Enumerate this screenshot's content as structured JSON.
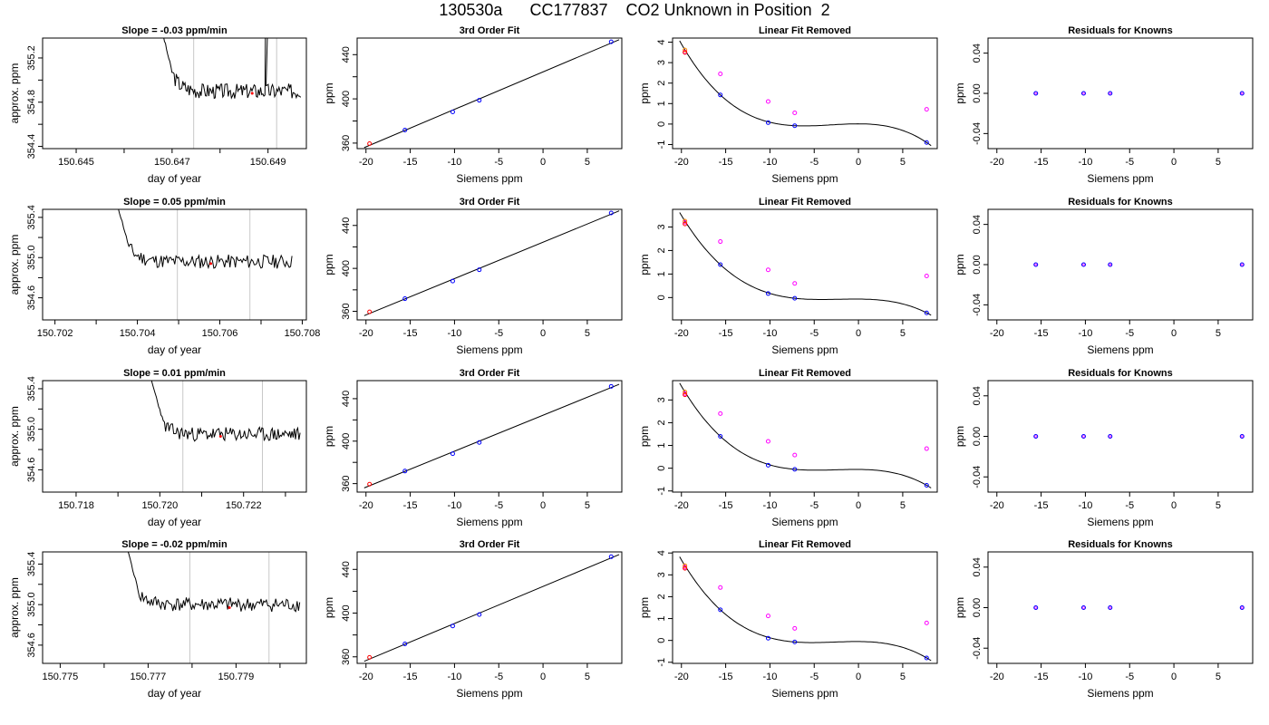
{
  "title": "130530a      CC177837    CO2 Unknown in Position  2",
  "colors": {
    "trace": "#000000",
    "vline": "#c8c8c8",
    "known": "#0000ff",
    "unknown": "#ff00ff",
    "first": "#ff0000",
    "highlight": "#ff8c00"
  },
  "chart_data": [
    {
      "row": 1,
      "type": "line",
      "title": "Slope =  -0.03  ppm/min",
      "xlabel": "day of year",
      "ylabel": "approx. ppm",
      "xlim": [
        150.6443,
        150.6498
      ],
      "ylim": [
        354.38,
        355.38
      ],
      "xticks": [
        150.645,
        150.647,
        150.649
      ],
      "xtick_labels": [
        "150.645",
        "150.647",
        "150.649"
      ],
      "xminor": [
        150.646,
        150.648
      ],
      "yticks": [
        354.4,
        354.8,
        355.2
      ],
      "ytick_labels": [
        "354.4",
        "354.8",
        "355.2"
      ],
      "yminor": [
        354.6,
        355.0
      ],
      "trace_x_start": 150.64675,
      "trace_x_end": 150.64968,
      "trace_start_y": 355.52,
      "trace_drop_y": 355.07,
      "trace_drop_x": 150.647,
      "trace_base": 354.9,
      "trace_amp": 0.07,
      "trace_seed": 3,
      "spike": {
        "x": 150.64895,
        "x2": 150.649,
        "y": 355.6
      },
      "vlines": [
        150.64745,
        150.64918
      ],
      "marker": {
        "x": 150.64867,
        "y": 354.88
      }
    },
    {
      "row": 1,
      "type": "scatter-line",
      "title": "3rd Order Fit",
      "xlabel": "Siemens ppm",
      "ylabel": "ppm",
      "xlim": [
        -21,
        8.9
      ],
      "ylim": [
        355,
        455
      ],
      "xticks": [
        -20,
        -15,
        -10,
        -5,
        0,
        5
      ],
      "xtick_labels": [
        "-20",
        "-15",
        "-10",
        "-5",
        "0",
        "5"
      ],
      "yticks": [
        360,
        400,
        440
      ],
      "ytick_labels": [
        "360",
        "400",
        "440"
      ],
      "yminor": [
        380,
        420
      ],
      "points_x": [
        -19.6,
        -15.6,
        -10.2,
        -7.2,
        7.7
      ],
      "points_y": [
        359.5,
        371.8,
        388.2,
        398.7,
        451.6
      ],
      "point_colors": [
        "first",
        "known",
        "known",
        "known",
        "known"
      ]
    },
    {
      "row": 1,
      "type": "scatter-curve",
      "title": "Linear Fit Removed",
      "xlabel": "Siemens ppm",
      "ylabel": "ppm",
      "xlim": [
        -21,
        8.9
      ],
      "ylim": [
        -1.2,
        4.2
      ],
      "xticks": [
        -20,
        -15,
        -10,
        -5,
        0,
        5
      ],
      "xtick_labels": [
        "-20",
        "-15",
        "-10",
        "-5",
        "0",
        "5"
      ],
      "yticks": [
        -1,
        0,
        1,
        2,
        3,
        4
      ],
      "ytick_labels": [
        "-1",
        "0",
        "1",
        "2",
        "3",
        "4"
      ],
      "known_x": [
        -15.6,
        -10.2,
        -7.2,
        7.7
      ],
      "known_y": [
        1.42,
        0.07,
        -0.08,
        -0.9
      ],
      "unknown_x": [
        -19.6,
        -15.6,
        -10.2,
        -7.2,
        7.7
      ],
      "unknown_y": [
        3.52,
        2.45,
        1.1,
        0.55,
        0.72
      ],
      "first_point": {
        "x": -19.6,
        "y": 3.62
      },
      "curve_range": [
        -20.2,
        8.2
      ]
    },
    {
      "row": 1,
      "type": "scatter",
      "title": "Residuals for Knowns",
      "xlabel": "Siemens ppm",
      "ylabel": "ppm",
      "xlim": [
        -21,
        8.9
      ],
      "ylim": [
        -0.055,
        0.055
      ],
      "xticks": [
        -20,
        -15,
        -10,
        -5,
        0,
        5
      ],
      "xtick_labels": [
        "-20",
        "-15",
        "-10",
        "-5",
        "0",
        "5"
      ],
      "yticks": [
        -0.04,
        0.0,
        0.04
      ],
      "ytick_labels": [
        "-0.04",
        "0.00",
        "0.04"
      ],
      "points_x": [
        -15.6,
        -10.2,
        -7.2,
        7.7
      ],
      "points_y": [
        0,
        0,
        0,
        0
      ]
    },
    {
      "row": 2,
      "type": "line",
      "title": "Slope =  0.05  ppm/min",
      "xlabel": "day of year",
      "ylabel": "approx. ppm",
      "xlim": [
        150.7017,
        150.7081
      ],
      "ylim": [
        354.38,
        355.48
      ],
      "xticks": [
        150.702,
        150.704,
        150.706,
        150.708
      ],
      "xtick_labels": [
        "150.702",
        "150.704",
        "150.706",
        "150.708"
      ],
      "xminor": [
        150.703,
        150.705,
        150.707
      ],
      "yticks": [
        354.6,
        355.0,
        355.4
      ],
      "ytick_labels": [
        "354.6",
        "355.0",
        "355.4"
      ],
      "yminor": [
        354.8,
        355.2
      ],
      "trace_x_start": 150.7035,
      "trace_x_end": 150.70775,
      "trace_start_y": 355.55,
      "trace_drop_y": 355.1,
      "trace_drop_x": 150.7038,
      "trace_base": 354.96,
      "trace_amp": 0.07,
      "trace_seed": 11,
      "vlines": [
        150.70497,
        150.70673
      ],
      "marker": {
        "x": 150.70578,
        "y": 354.94
      }
    },
    {
      "row": 2,
      "type": "scatter-line",
      "title": "3rd Order Fit",
      "xlabel": "Siemens ppm",
      "ylabel": "ppm",
      "xlim": [
        -21,
        8.9
      ],
      "ylim": [
        352,
        455
      ],
      "xticks": [
        -20,
        -15,
        -10,
        -5,
        0,
        5
      ],
      "xtick_labels": [
        "-20",
        "-15",
        "-10",
        "-5",
        "0",
        "5"
      ],
      "yticks": [
        360,
        400,
        440
      ],
      "ytick_labels": [
        "360",
        "400",
        "440"
      ],
      "yminor": [
        380,
        420
      ],
      "points_x": [
        -19.6,
        -15.6,
        -10.2,
        -7.2,
        7.7
      ],
      "points_y": [
        359.5,
        371.8,
        388.2,
        398.7,
        451.6
      ],
      "point_colors": [
        "first",
        "known",
        "known",
        "known",
        "known"
      ]
    },
    {
      "row": 2,
      "type": "scatter-curve",
      "title": "Linear Fit Removed",
      "xlabel": "Siemens ppm",
      "ylabel": "ppm",
      "xlim": [
        -21,
        8.9
      ],
      "ylim": [
        -0.95,
        3.75
      ],
      "xticks": [
        -20,
        -15,
        -10,
        -5,
        0,
        5
      ],
      "xtick_labels": [
        "-20",
        "-15",
        "-10",
        "-5",
        "0",
        "5"
      ],
      "yticks": [
        0,
        1,
        2,
        3
      ],
      "ytick_labels": [
        "0",
        "1",
        "2",
        "3"
      ],
      "known_x": [
        -15.6,
        -10.2,
        -7.2,
        7.7
      ],
      "known_y": [
        1.4,
        0.17,
        -0.03,
        -0.65
      ],
      "unknown_x": [
        -19.6,
        -15.6,
        -10.2,
        -7.2,
        7.7
      ],
      "unknown_y": [
        3.2,
        2.38,
        1.18,
        0.6,
        0.92
      ],
      "first_point": {
        "x": -19.6,
        "y": 3.25
      },
      "curve_range": [
        -20.2,
        8.2
      ]
    },
    {
      "row": 2,
      "type": "scatter",
      "title": "Residuals for Knowns",
      "xlabel": "Siemens ppm",
      "ylabel": "ppm",
      "xlim": [
        -21,
        8.9
      ],
      "ylim": [
        -0.055,
        0.055
      ],
      "xticks": [
        -20,
        -15,
        -10,
        -5,
        0,
        5
      ],
      "xtick_labels": [
        "-20",
        "-15",
        "-10",
        "-5",
        "0",
        "5"
      ],
      "yticks": [
        -0.04,
        0.0,
        0.04
      ],
      "ytick_labels": [
        "-0.04",
        "0.00",
        "0.04"
      ],
      "points_x": [
        -15.6,
        -10.2,
        -7.2,
        7.7
      ],
      "points_y": [
        0,
        0,
        0,
        0
      ]
    },
    {
      "row": 3,
      "type": "line",
      "title": "Slope =  0.01  ppm/min",
      "xlabel": "day of year",
      "ylabel": "approx. ppm",
      "xlim": [
        150.7172,
        150.7235
      ],
      "ylim": [
        354.38,
        355.48
      ],
      "xticks": [
        150.718,
        150.72,
        150.722
      ],
      "xtick_labels": [
        "150.718",
        "150.720",
        "150.722"
      ],
      "xminor": [
        150.719,
        150.721,
        150.723
      ],
      "yticks": [
        354.6,
        355.0,
        355.4
      ],
      "ytick_labels": [
        "354.6",
        "355.0",
        "355.4"
      ],
      "yminor": [
        354.8,
        355.2
      ],
      "trace_x_start": 150.71975,
      "trace_x_end": 150.72335,
      "trace_start_y": 355.55,
      "trace_drop_y": 355.05,
      "trace_drop_x": 150.7201,
      "trace_base": 354.95,
      "trace_amp": 0.07,
      "trace_seed": 23,
      "vlines": [
        150.72055,
        150.72245
      ],
      "marker": {
        "x": 150.72145,
        "y": 354.93
      }
    },
    {
      "row": 3,
      "type": "scatter-line",
      "title": "3rd Order Fit",
      "xlabel": "Siemens ppm",
      "ylabel": "ppm",
      "xlim": [
        -21,
        8.9
      ],
      "ylim": [
        352,
        457
      ],
      "xticks": [
        -20,
        -15,
        -10,
        -5,
        0,
        5
      ],
      "xtick_labels": [
        "-20",
        "-15",
        "-10",
        "-5",
        "0",
        "5"
      ],
      "yticks": [
        360,
        400,
        440
      ],
      "ytick_labels": [
        "360",
        "400",
        "440"
      ],
      "yminor": [
        380,
        420
      ],
      "points_x": [
        -19.6,
        -15.6,
        -10.2,
        -7.2,
        7.7
      ],
      "points_y": [
        359.5,
        371.8,
        388.2,
        398.7,
        451.6
      ],
      "point_colors": [
        "first",
        "known",
        "known",
        "known",
        "known"
      ]
    },
    {
      "row": 3,
      "type": "scatter-curve",
      "title": "Linear Fit Removed",
      "xlabel": "Siemens ppm",
      "ylabel": "ppm",
      "xlim": [
        -21,
        8.9
      ],
      "ylim": [
        -1.05,
        3.85
      ],
      "xticks": [
        -20,
        -15,
        -10,
        -5,
        0,
        5
      ],
      "xtick_labels": [
        "-20",
        "-15",
        "-10",
        "-5",
        "0",
        "5"
      ],
      "yticks": [
        -1,
        0,
        1,
        2,
        3
      ],
      "ytick_labels": [
        "-1",
        "0",
        "1",
        "2",
        "3"
      ],
      "known_x": [
        -15.6,
        -10.2,
        -7.2,
        7.7
      ],
      "known_y": [
        1.4,
        0.13,
        -0.05,
        -0.75
      ],
      "unknown_x": [
        -19.6,
        -15.6,
        -10.2,
        -7.2,
        7.7
      ],
      "unknown_y": [
        3.28,
        2.4,
        1.18,
        0.58,
        0.86
      ],
      "first_point": {
        "x": -19.6,
        "y": 3.35
      },
      "curve_range": [
        -20.2,
        8.2
      ]
    },
    {
      "row": 3,
      "type": "scatter",
      "title": "Residuals for Knowns",
      "xlabel": "Siemens ppm",
      "ylabel": "ppm",
      "xlim": [
        -21,
        8.9
      ],
      "ylim": [
        -0.055,
        0.055
      ],
      "xticks": [
        -20,
        -15,
        -10,
        -5,
        0,
        5
      ],
      "xtick_labels": [
        "-20",
        "-15",
        "-10",
        "-5",
        "0",
        "5"
      ],
      "yticks": [
        -0.04,
        0.0,
        0.04
      ],
      "ytick_labels": [
        "-0.04",
        "0.00",
        "0.04"
      ],
      "points_x": [
        -15.6,
        -10.2,
        -7.2,
        7.7
      ],
      "points_y": [
        0,
        0,
        0,
        0
      ]
    },
    {
      "row": 4,
      "type": "line",
      "title": "Slope =  -0.02  ppm/min",
      "xlabel": "day of year",
      "ylabel": "approx. ppm",
      "xlim": [
        150.7746,
        150.7806
      ],
      "ylim": [
        354.42,
        355.52
      ],
      "xticks": [
        150.775,
        150.777,
        150.779
      ],
      "xtick_labels": [
        "150.775",
        "150.777",
        "150.779"
      ],
      "xminor": [
        150.776,
        150.778,
        150.78
      ],
      "yticks": [
        354.6,
        355.0,
        355.4
      ],
      "ytick_labels": [
        "354.6",
        "355.0",
        "355.4"
      ],
      "yminor": [
        354.8,
        355.2
      ],
      "trace_x_start": 150.7765,
      "trace_x_end": 150.78045,
      "trace_start_y": 355.6,
      "trace_drop_y": 355.1,
      "trace_drop_x": 150.7768,
      "trace_base": 355.0,
      "trace_amp": 0.07,
      "trace_seed": 41,
      "vlines": [
        150.77795,
        150.77975
      ],
      "marker": {
        "x": 150.77885,
        "y": 354.97
      }
    },
    {
      "row": 4,
      "type": "scatter-line",
      "title": "3rd Order Fit",
      "xlabel": "Siemens ppm",
      "ylabel": "ppm",
      "xlim": [
        -21,
        8.9
      ],
      "ylim": [
        354,
        456
      ],
      "xticks": [
        -20,
        -15,
        -10,
        -5,
        0,
        5
      ],
      "xtick_labels": [
        "-20",
        "-15",
        "-10",
        "-5",
        "0",
        "5"
      ],
      "yticks": [
        360,
        400,
        440
      ],
      "ytick_labels": [
        "360",
        "400",
        "440"
      ],
      "yminor": [
        380,
        420
      ],
      "points_x": [
        -19.6,
        -15.6,
        -10.2,
        -7.2,
        7.7
      ],
      "points_y": [
        359.5,
        371.8,
        388.2,
        398.7,
        451.6
      ],
      "point_colors": [
        "first",
        "known",
        "known",
        "known",
        "known"
      ]
    },
    {
      "row": 4,
      "type": "scatter-curve",
      "title": "Linear Fit Removed",
      "xlabel": "Siemens ppm",
      "ylabel": "ppm",
      "xlim": [
        -21,
        8.9
      ],
      "ylim": [
        -1.05,
        4.05
      ],
      "xticks": [
        -20,
        -15,
        -10,
        -5,
        0,
        5
      ],
      "xtick_labels": [
        "-20",
        "-15",
        "-10",
        "-5",
        "0",
        "5"
      ],
      "yticks": [
        -1,
        0,
        1,
        2,
        3,
        4
      ],
      "ytick_labels": [
        "-1",
        "0",
        "1",
        "2",
        "3",
        "4"
      ],
      "known_x": [
        -15.6,
        -10.2,
        -7.2,
        7.7
      ],
      "known_y": [
        1.4,
        0.1,
        -0.07,
        -0.8
      ],
      "unknown_x": [
        -19.6,
        -15.6,
        -10.2,
        -7.2,
        7.7
      ],
      "unknown_y": [
        3.35,
        2.42,
        1.12,
        0.55,
        0.8
      ],
      "first_point": {
        "x": -19.6,
        "y": 3.42
      },
      "curve_range": [
        -20.2,
        8.2
      ]
    },
    {
      "row": 4,
      "type": "scatter",
      "title": "Residuals for Knowns",
      "xlabel": "Siemens ppm",
      "ylabel": "ppm",
      "xlim": [
        -21,
        8.9
      ],
      "ylim": [
        -0.055,
        0.055
      ],
      "xticks": [
        -20,
        -15,
        -10,
        -5,
        0,
        5
      ],
      "xtick_labels": [
        "-20",
        "-15",
        "-10",
        "-5",
        "0",
        "5"
      ],
      "yticks": [
        -0.04,
        0.0,
        0.04
      ],
      "ytick_labels": [
        "-0.04",
        "0.00",
        "0.04"
      ],
      "points_x": [
        -15.6,
        -10.2,
        -7.2,
        7.7
      ],
      "points_y": [
        0,
        0,
        0,
        0
      ]
    }
  ]
}
